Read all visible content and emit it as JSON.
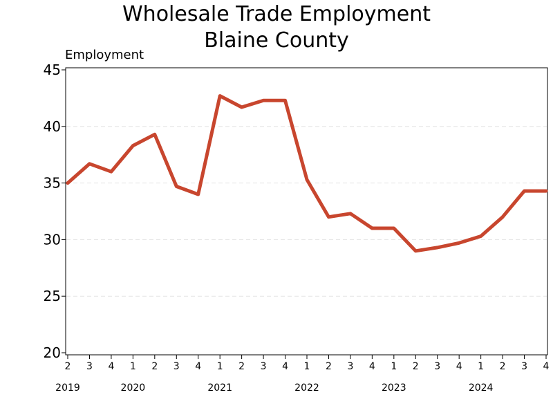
{
  "chart_data": {
    "type": "line",
    "title": [
      "Wholesale Trade Employment",
      "Blaine County"
    ],
    "ylabel": "Employment",
    "xlabel": "",
    "ylim": [
      20,
      45
    ],
    "yticks": [
      20,
      25,
      30,
      35,
      40,
      45
    ],
    "grid": true,
    "legend": "none",
    "x": [
      "2019 Q2",
      "2019 Q3",
      "2019 Q4",
      "2020 Q1",
      "2020 Q2",
      "2020 Q3",
      "2020 Q4",
      "2021 Q1",
      "2021 Q2",
      "2021 Q3",
      "2021 Q4",
      "2022 Q1",
      "2022 Q2",
      "2022 Q3",
      "2022 Q4",
      "2023 Q1",
      "2023 Q2",
      "2023 Q3",
      "2023 Q4",
      "2024 Q1",
      "2024 Q2",
      "2024 Q3",
      "2024 Q4"
    ],
    "quarter_labels": [
      "2",
      "3",
      "4",
      "1",
      "2",
      "3",
      "4",
      "1",
      "2",
      "3",
      "4",
      "1",
      "2",
      "3",
      "4",
      "1",
      "2",
      "3",
      "4",
      "1",
      "2",
      "3",
      "4"
    ],
    "year_labels": [
      {
        "label": "2019",
        "quarter_index": 0
      },
      {
        "label": "2020",
        "quarter_index": 3
      },
      {
        "label": "2021",
        "quarter_index": 7
      },
      {
        "label": "2022",
        "quarter_index": 11
      },
      {
        "label": "2023",
        "quarter_index": 15
      },
      {
        "label": "2024",
        "quarter_index": 19
      }
    ],
    "series": [
      {
        "color": "#C8462E",
        "values": [
          35.0,
          36.7,
          36.0,
          38.3,
          39.3,
          34.7,
          34.0,
          42.7,
          41.7,
          42.3,
          42.3,
          35.3,
          32.0,
          32.3,
          31.0,
          31.0,
          29.0,
          29.3,
          29.7,
          30.3,
          32.0,
          34.3,
          34.3
        ]
      }
    ]
  }
}
